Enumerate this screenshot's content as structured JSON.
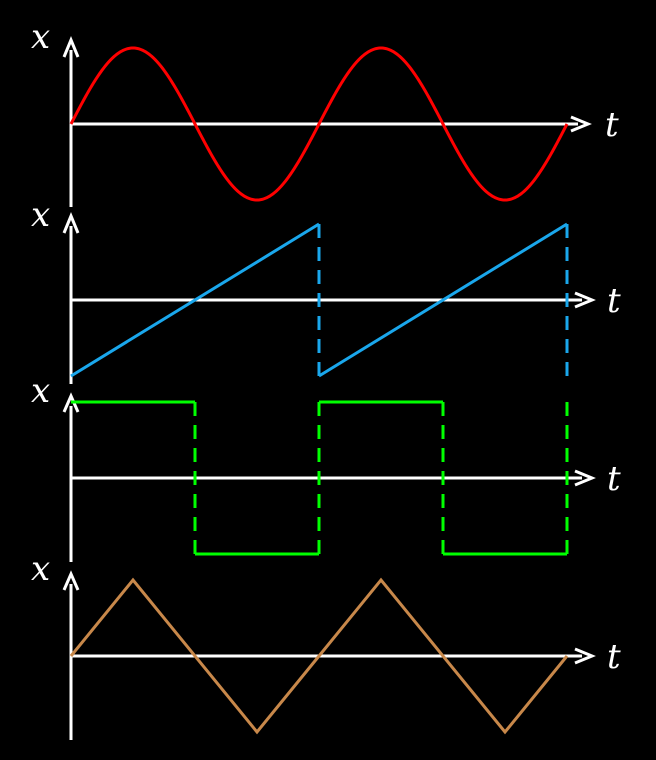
{
  "colors": {
    "background": "#000000",
    "axes": "#ffffff",
    "sine": "#ff0000",
    "sawtooth": "#1aa7ec",
    "square": "#00ff00",
    "triangle": "#c8884a"
  },
  "panels": [
    {
      "id": "sine",
      "wave": "sine",
      "y_label": "x",
      "x_label": "t",
      "cycles": 2,
      "amplitude": 1
    },
    {
      "id": "sawtooth",
      "wave": "sawtooth",
      "y_label": "x",
      "x_label": "t",
      "cycles": 2,
      "amplitude": 1
    },
    {
      "id": "square",
      "wave": "square",
      "y_label": "x",
      "x_label": "t",
      "cycles": 2,
      "amplitude": 1
    },
    {
      "id": "triangle",
      "wave": "triangle",
      "y_label": "x",
      "x_label": "t",
      "cycles": 2,
      "amplitude": 1
    }
  ]
}
